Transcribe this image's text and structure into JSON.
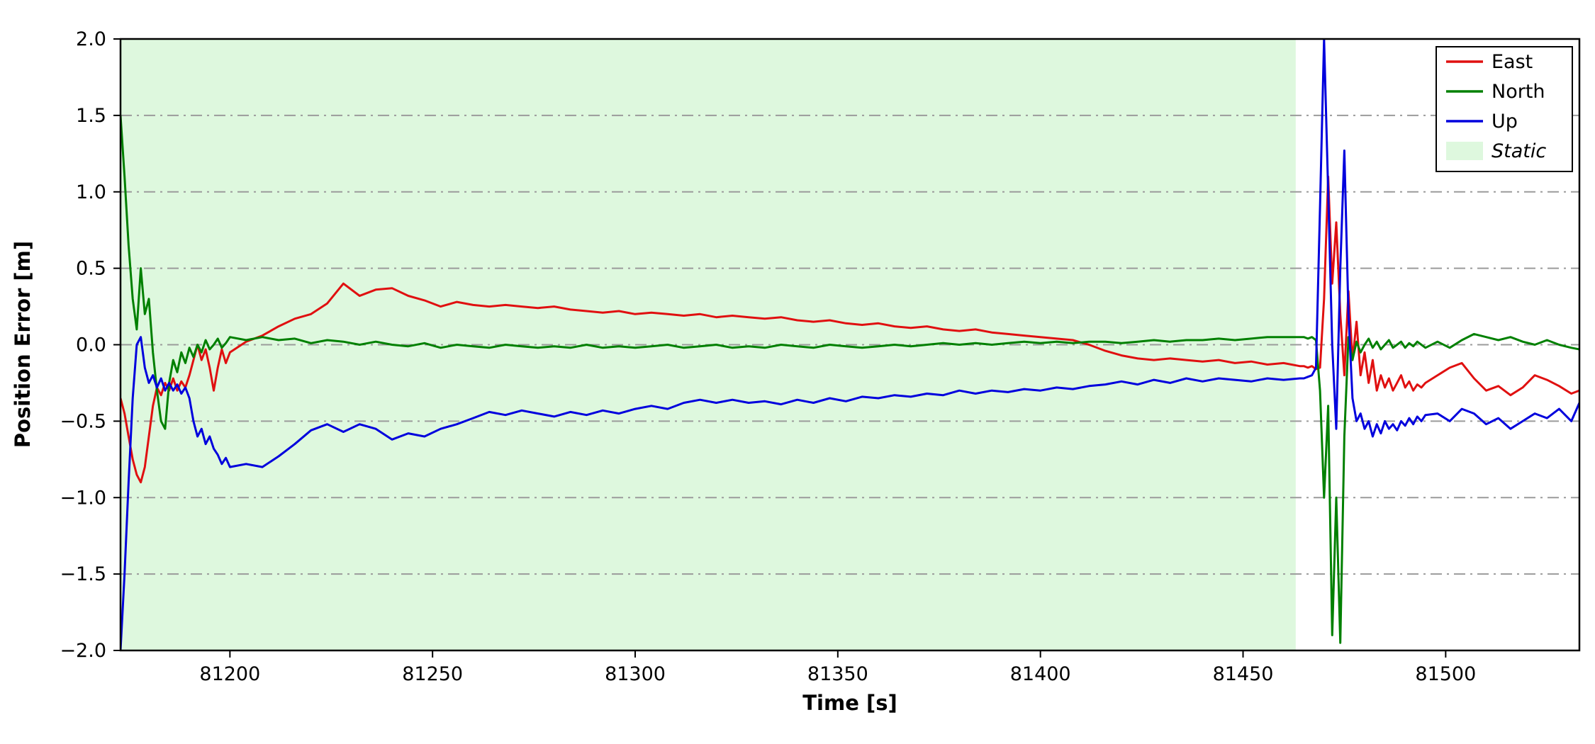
{
  "chart_data": {
    "type": "line",
    "title": "",
    "xlabel": "Time [s]",
    "ylabel": "Position Error [m]",
    "xlim": [
      81173,
      81533
    ],
    "ylim": [
      -2.0,
      2.0
    ],
    "xticks": [
      81200,
      81250,
      81300,
      81350,
      81400,
      81450,
      81500
    ],
    "yticks": [
      -2.0,
      -1.5,
      -1.0,
      -0.5,
      0.0,
      0.5,
      1.0,
      1.5,
      2.0
    ],
    "grid": {
      "axis": "y",
      "style": "dash-dot",
      "color": "#9b9b9b"
    },
    "legend": {
      "position": "upper right",
      "entries": [
        "East",
        "North",
        "Up",
        "Static"
      ]
    },
    "static_region": {
      "label": "Static",
      "x_start": 81173,
      "x_end": 81463,
      "color": "#def8de"
    },
    "x": [
      81173,
      81174,
      81175,
      81176,
      81177,
      81178,
      81179,
      81180,
      81181,
      81182,
      81183,
      81184,
      81185,
      81186,
      81187,
      81188,
      81189,
      81190,
      81191,
      81192,
      81193,
      81194,
      81195,
      81196,
      81197,
      81198,
      81199,
      81200,
      81204,
      81208,
      81212,
      81216,
      81220,
      81224,
      81228,
      81232,
      81236,
      81240,
      81244,
      81248,
      81252,
      81256,
      81260,
      81264,
      81268,
      81272,
      81276,
      81280,
      81284,
      81288,
      81292,
      81296,
      81300,
      81304,
      81308,
      81312,
      81316,
      81320,
      81324,
      81328,
      81332,
      81336,
      81340,
      81344,
      81348,
      81352,
      81356,
      81360,
      81364,
      81368,
      81372,
      81376,
      81380,
      81384,
      81388,
      81392,
      81396,
      81400,
      81404,
      81408,
      81412,
      81416,
      81420,
      81424,
      81428,
      81432,
      81436,
      81440,
      81444,
      81448,
      81452,
      81456,
      81460,
      81464,
      81465,
      81466,
      81467,
      81468,
      81469,
      81470,
      81471,
      81472,
      81473,
      81474,
      81475,
      81476,
      81477,
      81478,
      81479,
      81480,
      81481,
      81482,
      81483,
      81484,
      81485,
      81486,
      81487,
      81488,
      81489,
      81490,
      81491,
      81492,
      81493,
      81494,
      81495,
      81498,
      81501,
      81504,
      81507,
      81510,
      81513,
      81516,
      81519,
      81522,
      81525,
      81528,
      81531,
      81533
    ],
    "series": [
      {
        "name": "East",
        "color": "#e01010",
        "values": [
          -0.35,
          -0.45,
          -0.6,
          -0.75,
          -0.85,
          -0.9,
          -0.8,
          -0.6,
          -0.4,
          -0.28,
          -0.33,
          -0.25,
          -0.3,
          -0.22,
          -0.3,
          -0.24,
          -0.28,
          -0.2,
          -0.1,
          0.0,
          -0.1,
          -0.03,
          -0.15,
          -0.3,
          -0.15,
          -0.03,
          -0.12,
          -0.05,
          0.02,
          0.06,
          0.12,
          0.17,
          0.2,
          0.27,
          0.4,
          0.32,
          0.36,
          0.37,
          0.32,
          0.29,
          0.25,
          0.28,
          0.26,
          0.25,
          0.26,
          0.25,
          0.24,
          0.25,
          0.23,
          0.22,
          0.21,
          0.22,
          0.2,
          0.21,
          0.2,
          0.19,
          0.2,
          0.18,
          0.19,
          0.18,
          0.17,
          0.18,
          0.16,
          0.15,
          0.16,
          0.14,
          0.13,
          0.14,
          0.12,
          0.11,
          0.12,
          0.1,
          0.09,
          0.1,
          0.08,
          0.07,
          0.06,
          0.05,
          0.04,
          0.03,
          0.0,
          -0.04,
          -0.07,
          -0.09,
          -0.1,
          -0.09,
          -0.1,
          -0.11,
          -0.1,
          -0.12,
          -0.11,
          -0.13,
          -0.12,
          -0.14,
          -0.14,
          -0.15,
          -0.14,
          -0.16,
          -0.15,
          0.3,
          1.1,
          0.4,
          0.8,
          0.2,
          -0.2,
          0.35,
          -0.1,
          0.15,
          -0.2,
          -0.05,
          -0.25,
          -0.1,
          -0.3,
          -0.2,
          -0.28,
          -0.22,
          -0.3,
          -0.25,
          -0.2,
          -0.28,
          -0.24,
          -0.3,
          -0.26,
          -0.28,
          -0.25,
          -0.2,
          -0.15,
          -0.12,
          -0.22,
          -0.3,
          -0.27,
          -0.33,
          -0.28,
          -0.2,
          -0.23,
          -0.27,
          -0.32,
          -0.3
        ]
      },
      {
        "name": "North",
        "color": "#008000",
        "values": [
          1.5,
          1.1,
          0.65,
          0.3,
          0.1,
          0.5,
          0.2,
          0.3,
          -0.05,
          -0.3,
          -0.5,
          -0.55,
          -0.25,
          -0.1,
          -0.18,
          -0.05,
          -0.12,
          -0.02,
          -0.08,
          0.0,
          -0.05,
          0.03,
          -0.03,
          0.0,
          0.04,
          -0.02,
          0.01,
          0.05,
          0.03,
          0.05,
          0.03,
          0.04,
          0.01,
          0.03,
          0.02,
          0.0,
          0.02,
          0.0,
          -0.01,
          0.01,
          -0.02,
          0.0,
          -0.01,
          -0.02,
          0.0,
          -0.01,
          -0.02,
          -0.01,
          -0.02,
          0.0,
          -0.02,
          -0.01,
          -0.02,
          -0.01,
          0.0,
          -0.02,
          -0.01,
          0.0,
          -0.02,
          -0.01,
          -0.02,
          0.0,
          -0.01,
          -0.02,
          0.0,
          -0.01,
          -0.02,
          -0.01,
          0.0,
          -0.01,
          0.0,
          0.01,
          0.0,
          0.01,
          0.0,
          0.01,
          0.02,
          0.01,
          0.02,
          0.01,
          0.02,
          0.02,
          0.01,
          0.02,
          0.03,
          0.02,
          0.03,
          0.03,
          0.04,
          0.03,
          0.04,
          0.05,
          0.05,
          0.05,
          0.05,
          0.04,
          0.05,
          0.03,
          -0.3,
          -1.0,
          -0.4,
          -1.9,
          -1.0,
          -1.95,
          -0.6,
          0.05,
          -0.1,
          0.02,
          -0.05,
          0.0,
          0.04,
          -0.02,
          0.02,
          -0.03,
          0.0,
          0.03,
          -0.02,
          0.0,
          0.02,
          -0.02,
          0.01,
          -0.01,
          0.02,
          0.0,
          -0.02,
          0.02,
          -0.02,
          0.03,
          0.07,
          0.05,
          0.03,
          0.05,
          0.02,
          0.0,
          0.03,
          0.0,
          -0.02,
          -0.03
        ]
      },
      {
        "name": "Up",
        "color": "#0000dd",
        "values": [
          -2.0,
          -1.5,
          -0.9,
          -0.35,
          0.0,
          0.05,
          -0.15,
          -0.25,
          -0.2,
          -0.28,
          -0.22,
          -0.3,
          -0.25,
          -0.3,
          -0.26,
          -0.32,
          -0.28,
          -0.35,
          -0.5,
          -0.6,
          -0.55,
          -0.65,
          -0.6,
          -0.68,
          -0.72,
          -0.78,
          -0.74,
          -0.8,
          -0.78,
          -0.8,
          -0.73,
          -0.65,
          -0.56,
          -0.52,
          -0.57,
          -0.52,
          -0.55,
          -0.62,
          -0.58,
          -0.6,
          -0.55,
          -0.52,
          -0.48,
          -0.44,
          -0.46,
          -0.43,
          -0.45,
          -0.47,
          -0.44,
          -0.46,
          -0.43,
          -0.45,
          -0.42,
          -0.4,
          -0.42,
          -0.38,
          -0.36,
          -0.38,
          -0.36,
          -0.38,
          -0.37,
          -0.39,
          -0.36,
          -0.38,
          -0.35,
          -0.37,
          -0.34,
          -0.35,
          -0.33,
          -0.34,
          -0.32,
          -0.33,
          -0.3,
          -0.32,
          -0.3,
          -0.31,
          -0.29,
          -0.3,
          -0.28,
          -0.29,
          -0.27,
          -0.26,
          -0.24,
          -0.26,
          -0.23,
          -0.25,
          -0.22,
          -0.24,
          -0.22,
          -0.23,
          -0.24,
          -0.22,
          -0.23,
          -0.22,
          -0.22,
          -0.21,
          -0.2,
          -0.15,
          0.9,
          2.0,
          1.0,
          0.0,
          -0.55,
          0.5,
          1.27,
          0.2,
          -0.35,
          -0.5,
          -0.45,
          -0.55,
          -0.5,
          -0.6,
          -0.52,
          -0.58,
          -0.5,
          -0.55,
          -0.52,
          -0.56,
          -0.5,
          -0.53,
          -0.48,
          -0.52,
          -0.47,
          -0.5,
          -0.46,
          -0.45,
          -0.5,
          -0.42,
          -0.45,
          -0.52,
          -0.48,
          -0.55,
          -0.5,
          -0.45,
          -0.48,
          -0.42,
          -0.5,
          -0.38
        ]
      }
    ]
  }
}
